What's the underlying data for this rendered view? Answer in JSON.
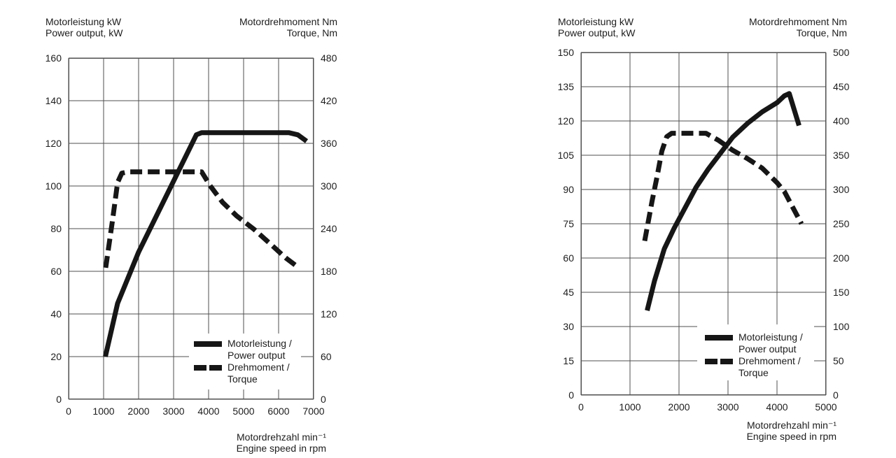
{
  "colors": {
    "curve": "#161616",
    "grid": "#4f4f4f",
    "text": "#1d1d1d",
    "background": "#ffffff"
  },
  "chart_data": [
    {
      "type": "line",
      "grid": true,
      "legend_position": "inside-bottom-right",
      "x_axis": {
        "title_lines": [
          "Motordrehzahl min⁻¹",
          "Engine speed in rpm"
        ],
        "min": 0,
        "max": 7000,
        "ticks": [
          0,
          1000,
          2000,
          3000,
          4000,
          5000,
          6000,
          7000
        ]
      },
      "left_axis": {
        "title_lines": [
          "Motorleistung kW",
          "Power output, kW"
        ],
        "min": 0,
        "max": 160,
        "ticks": [
          0,
          20,
          40,
          60,
          80,
          100,
          120,
          140,
          160
        ]
      },
      "right_axis": {
        "title_lines": [
          "Motordrehmoment Nm",
          "Torque, Nm"
        ],
        "min": 0,
        "max": 480,
        "ticks": [
          0,
          60,
          120,
          180,
          240,
          300,
          360,
          420,
          480
        ]
      },
      "legend": {
        "items": [
          {
            "style": "solid",
            "lines": [
              "Motorleistung /",
              "Power output"
            ]
          },
          {
            "style": "dashed",
            "lines": [
              "Drehmoment /",
              "Torque"
            ]
          }
        ]
      },
      "series": [
        {
          "name": "Motorleistung / Power output",
          "axis": "left",
          "unit": "kW",
          "line_style": "solid",
          "points": [
            [
              1050,
              20
            ],
            [
              1400,
              45
            ],
            [
              1600,
              53
            ],
            [
              2000,
              69
            ],
            [
              2600,
              89
            ],
            [
              3200,
              109
            ],
            [
              3650,
              124
            ],
            [
              3800,
              125
            ],
            [
              6300,
              125
            ],
            [
              6550,
              124
            ],
            [
              6800,
              121
            ]
          ]
        },
        {
          "name": "Drehmoment / Torque",
          "axis": "right",
          "unit": "Nm",
          "line_style": "dashed",
          "points": [
            [
              1060,
              185
            ],
            [
              1250,
              250
            ],
            [
              1400,
              305
            ],
            [
              1520,
              318
            ],
            [
              1700,
              320
            ],
            [
              3800,
              320
            ],
            [
              4050,
              300
            ],
            [
              4400,
              277
            ],
            [
              4800,
              258
            ],
            [
              5300,
              239
            ],
            [
              5800,
              217
            ],
            [
              6200,
              199
            ],
            [
              6550,
              186
            ]
          ]
        }
      ]
    },
    {
      "type": "line",
      "grid": true,
      "legend_position": "inside-bottom-right",
      "x_axis": {
        "title_lines": [
          "Motordrehzahl min⁻¹",
          "Engine speed in rpm"
        ],
        "min": 0,
        "max": 5000,
        "ticks": [
          0,
          1000,
          2000,
          3000,
          4000,
          5000
        ]
      },
      "left_axis": {
        "title_lines": [
          "Motorleistung kW",
          "Power output, kW"
        ],
        "min": 0,
        "max": 150,
        "ticks": [
          0,
          15,
          30,
          45,
          60,
          75,
          90,
          105,
          120,
          135,
          150
        ]
      },
      "right_axis": {
        "title_lines": [
          "Motordrehmoment Nm",
          "Torque, Nm"
        ],
        "min": 0,
        "max": 500,
        "ticks": [
          0,
          50,
          100,
          150,
          200,
          250,
          300,
          350,
          400,
          450,
          500
        ]
      },
      "legend": {
        "items": [
          {
            "style": "solid",
            "lines": [
              "Motorleistung /",
              "Power output"
            ]
          },
          {
            "style": "dashed",
            "lines": [
              "Drehmoment /",
              "Torque"
            ]
          }
        ]
      },
      "series": [
        {
          "name": "Motorleistung / Power output",
          "axis": "left",
          "unit": "kW",
          "line_style": "solid",
          "points": [
            [
              1350,
              37
            ],
            [
              1500,
              50
            ],
            [
              1700,
              64
            ],
            [
              1900,
              73
            ],
            [
              2100,
              81
            ],
            [
              2350,
              91
            ],
            [
              2600,
              99
            ],
            [
              2850,
              106
            ],
            [
              3100,
              113
            ],
            [
              3400,
              119
            ],
            [
              3700,
              124
            ],
            [
              4000,
              128
            ],
            [
              4150,
              131
            ],
            [
              4250,
              132
            ],
            [
              4450,
              118
            ]
          ]
        },
        {
          "name": "Drehmoment / Torque",
          "axis": "right",
          "unit": "Nm",
          "line_style": "dashed",
          "points": [
            [
              1300,
              225
            ],
            [
              1450,
              283
            ],
            [
              1550,
              318
            ],
            [
              1650,
              356
            ],
            [
              1750,
              377
            ],
            [
              1850,
              382
            ],
            [
              2550,
              382
            ],
            [
              2800,
              372
            ],
            [
              3100,
              357
            ],
            [
              3400,
              345
            ],
            [
              3700,
              331
            ],
            [
              4000,
              310
            ],
            [
              4150,
              297
            ],
            [
              4500,
              250
            ]
          ]
        }
      ]
    }
  ]
}
